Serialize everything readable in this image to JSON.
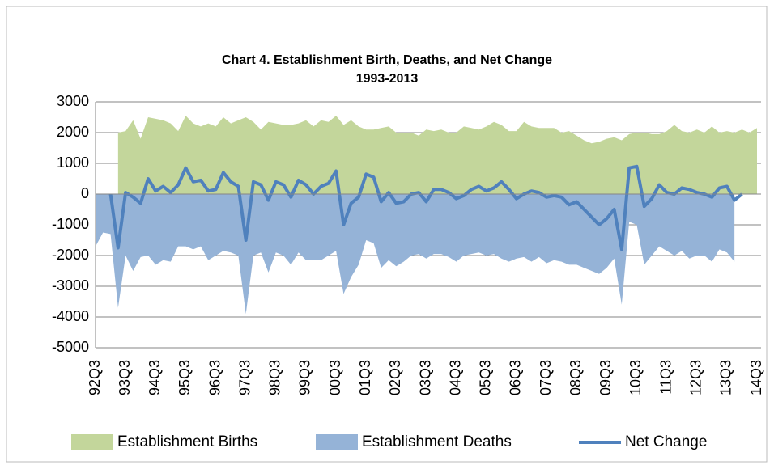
{
  "chart_data": {
    "type": "area",
    "title": "Chart 4. Establishment Birth, Deaths, and Net Change",
    "subtitle": "1993-2013",
    "categories": [
      "92Q3",
      null,
      null,
      null,
      "93Q3",
      null,
      null,
      null,
      "94Q3",
      null,
      null,
      null,
      "95Q3",
      null,
      null,
      null,
      "96Q3",
      null,
      null,
      null,
      "97Q3",
      null,
      null,
      null,
      "98Q3",
      null,
      null,
      null,
      "99Q3",
      null,
      null,
      null,
      "00Q3",
      null,
      null,
      null,
      "01Q3",
      null,
      null,
      null,
      "02Q3",
      null,
      null,
      null,
      "03Q3",
      null,
      null,
      null,
      "04Q3",
      null,
      null,
      null,
      "05Q3",
      null,
      null,
      null,
      "06Q3",
      null,
      null,
      null,
      "07Q3",
      null,
      null,
      null,
      "08Q3",
      null,
      null,
      null,
      "09Q3",
      null,
      null,
      null,
      "10Q3",
      null,
      null,
      null,
      "11Q3",
      null,
      null,
      null,
      "12Q3",
      null,
      null,
      null,
      "13Q3",
      null,
      null,
      null,
      "14Q3"
    ],
    "series": [
      {
        "name": "Establishment Births",
        "type": "area",
        "color": "#c3d69b",
        "values": [
          null,
          null,
          null,
          2000,
          2050,
          2400,
          1800,
          2500,
          2450,
          2400,
          2300,
          2050,
          2550,
          2300,
          2200,
          2300,
          2200,
          2500,
          2300,
          2400,
          2500,
          2350,
          2100,
          2350,
          2300,
          2250,
          2250,
          2300,
          2400,
          2200,
          2400,
          2350,
          2550,
          2250,
          2400,
          2200,
          2100,
          2100,
          2150,
          2200,
          2000,
          2000,
          2000,
          1900,
          2100,
          2050,
          2100,
          2000,
          2000,
          2200,
          2150,
          2100,
          2200,
          2350,
          2250,
          2050,
          2050,
          2350,
          2200,
          2150,
          2150,
          2150,
          2000,
          2050,
          1900,
          1750,
          1650,
          1700,
          1800,
          1850,
          1750,
          1950,
          2000,
          2000,
          1950,
          1950,
          2050,
          2250,
          2050,
          2000,
          2100,
          2000,
          2200,
          2000,
          2050,
          2000,
          2100,
          2000,
          2150
        ]
      },
      {
        "name": "Establishment Deaths",
        "type": "area",
        "color": "#95b3d7",
        "values": [
          -1700,
          -1250,
          -1300,
          -3700,
          -2000,
          -2500,
          -2050,
          -2000,
          -2300,
          -2150,
          -2200,
          -1700,
          -1700,
          -1800,
          -1700,
          -2150,
          -2000,
          -1850,
          -1900,
          -2000,
          -3900,
          -2000,
          -1900,
          -2550,
          -1900,
          -2000,
          -2300,
          -1900,
          -2150,
          -2150,
          -2150,
          -2000,
          -1850,
          -3250,
          -2700,
          -2300,
          -1500,
          -1600,
          -2400,
          -2150,
          -2350,
          -2200,
          -2000,
          -1950,
          -2100,
          -1950,
          -1950,
          -2050,
          -2200,
          -2000,
          -1950,
          -1900,
          -2000,
          -1950,
          -2100,
          -2200,
          -2100,
          -2050,
          -2200,
          -2050,
          -2250,
          -2150,
          -2200,
          -2300,
          -2300,
          -2400,
          -2500,
          -2600,
          -2400,
          -2100,
          -3600,
          -900,
          -1000,
          -2300,
          -2000,
          -1700,
          -1850,
          -2000,
          -1850,
          -2100,
          -2000,
          -2000,
          -2200,
          -1800,
          -1900,
          -2200,
          null,
          null,
          null
        ]
      },
      {
        "name": "Net Change",
        "type": "line",
        "color": "#4f81bd",
        "values": [
          null,
          null,
          0,
          -1750,
          50,
          -100,
          -300,
          500,
          100,
          250,
          50,
          300,
          850,
          400,
          450,
          100,
          150,
          700,
          400,
          250,
          -1500,
          400,
          300,
          -200,
          400,
          300,
          -100,
          450,
          300,
          0,
          250,
          350,
          750,
          -1000,
          -300,
          -100,
          650,
          550,
          -250,
          50,
          -300,
          -250,
          0,
          50,
          -250,
          150,
          150,
          50,
          -150,
          -50,
          150,
          250,
          100,
          200,
          400,
          150,
          -150,
          0,
          100,
          50,
          -100,
          -50,
          -100,
          -350,
          -250,
          -500,
          -750,
          -1000,
          -800,
          -500,
          -1800,
          850,
          900,
          -400,
          -150,
          300,
          50,
          0,
          200,
          150,
          50,
          0,
          -100,
          200,
          250,
          -200,
          0,
          null,
          null
        ]
      }
    ],
    "ylim": [
      -5000,
      3000
    ],
    "yticks": [
      -5000,
      -4000,
      -3000,
      -2000,
      -1000,
      0,
      1000,
      2000,
      3000
    ],
    "grid": true,
    "legend": "bottom"
  }
}
